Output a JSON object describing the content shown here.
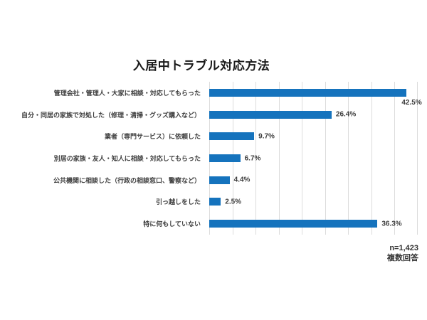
{
  "chart_data": {
    "type": "bar",
    "orientation": "horizontal",
    "title": "入居中トラブル対応方法",
    "categories": [
      "管理会社・管理人・大家に相談・対応してもらった",
      "自分・同居の家族で対処した（修理・清掃・グッズ購入など）",
      "業者（専門サービス）に依頼した",
      "別居の家族・友人・知人に相談・対応してもらった",
      "公共機関に相談した（行政の相談窓口、警察など）",
      "引っ越しをした",
      "特に何もしていない"
    ],
    "values": [
      42.5,
      26.4,
      9.7,
      6.7,
      4.4,
      2.5,
      36.3
    ],
    "value_suffix": "%",
    "xlim": [
      0,
      45
    ],
    "grid_step": 5,
    "grid": true,
    "legend_position": "none",
    "bar_color": "#1573bd",
    "gridline_color": "#dcdcdc",
    "text_color": "#3d3d3d",
    "note": [
      "n=1,423",
      "複数回答"
    ]
  }
}
